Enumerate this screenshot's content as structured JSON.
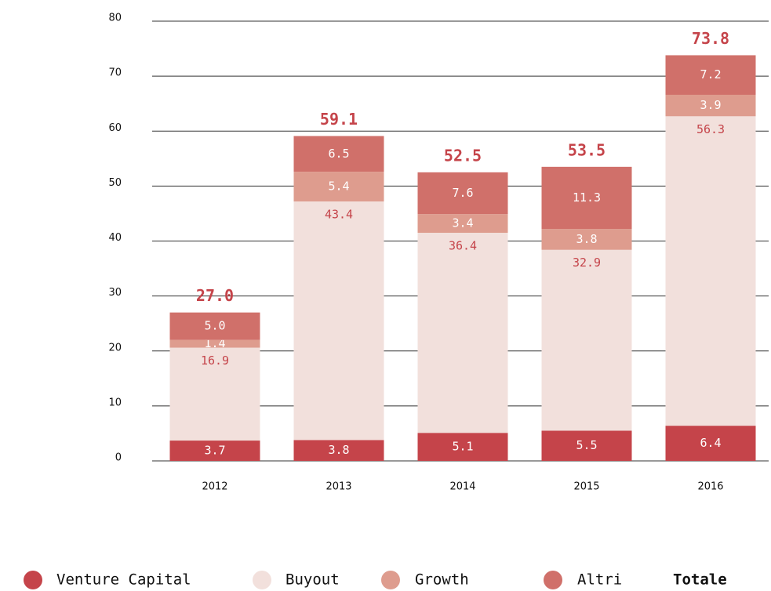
{
  "chart_data": {
    "type": "stacked_bar",
    "categories": [
      "2012",
      "2013",
      "2014",
      "2015",
      "2016"
    ],
    "series": [
      {
        "name": "Venture Capital",
        "color": "#c5444a",
        "values": [
          3.7,
          3.8,
          5.1,
          5.5,
          6.4
        ],
        "label_color": "#ffffff"
      },
      {
        "name": "Buyout",
        "color": "#f2e0dc",
        "values": [
          16.9,
          43.4,
          36.4,
          32.9,
          56.3
        ],
        "label_color": "#c5444a"
      },
      {
        "name": "Growth",
        "color": "#de9c8e",
        "values": [
          1.4,
          5.4,
          3.4,
          3.8,
          3.9
        ],
        "label_color": "#ffffff"
      },
      {
        "name": "Altri",
        "color": "#d0706a",
        "values": [
          5,
          6.5,
          7.6,
          11.3,
          7.2
        ],
        "value_labels": [
          "5.0",
          "6.5",
          "7.6",
          "11.3",
          "7.2"
        ],
        "label_color": "#ffffff"
      }
    ],
    "totals": {
      "name": "Totale",
      "values": [
        27,
        59.1,
        52.5,
        53.5,
        73.8
      ],
      "value_labels": [
        "27.0",
        "59.1",
        "52.5",
        "53.5",
        "73.8"
      ]
    },
    "ylim": [
      0,
      80
    ],
    "yticks": [
      0,
      10,
      20,
      30,
      40,
      50,
      60,
      70,
      80
    ],
    "grid": true
  }
}
